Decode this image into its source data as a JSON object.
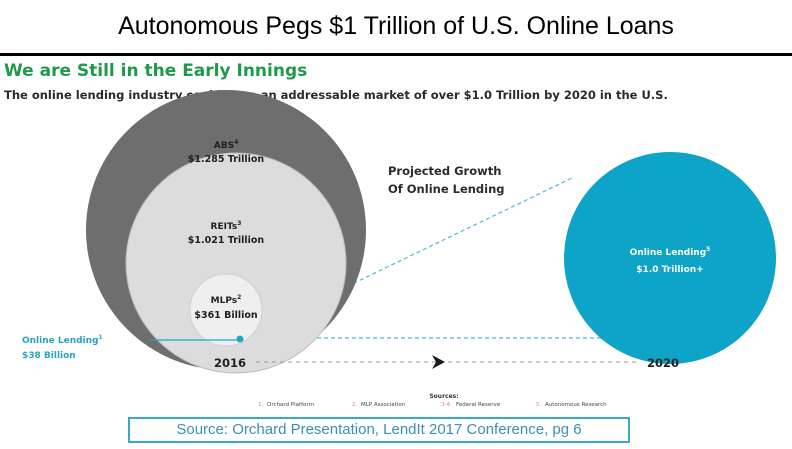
{
  "page_title": "Autonomous Pegs $1 Trillion of U.S. Online Loans",
  "slide": {
    "heading": "We are Still in the Early Innings",
    "subheading": "The online lending industry could have an addressable market of over $1.0 Trillion by 2020 in the U.S.",
    "circles": {
      "abs": {
        "label": "ABS",
        "sup": "4",
        "value": "$1.285 Trillion",
        "color": "#6e6e6e"
      },
      "reits": {
        "label": "REITs",
        "sup": "3",
        "value": "$1.021 Trillion",
        "color": "#dcdcdc"
      },
      "mlps": {
        "label": "MLPs",
        "sup": "2",
        "value": "$361 Billion",
        "color": "#efefef"
      },
      "online_2016": {
        "label": "Online Lending",
        "sup": "1",
        "value": "$38 Billion",
        "color": "#29a3c4"
      },
      "online_2020": {
        "label": "Online Lending",
        "sup": "5",
        "value": "$1.0 Trillion+",
        "color": "#0ea4c8"
      }
    },
    "projected_line1": "Projected Growth",
    "projected_line2": "Of Online Lending",
    "year_start": "2016",
    "year_end": "2020",
    "sources_title": "Sources:",
    "sources": [
      {
        "num": "1.",
        "text": "Orchard Platform"
      },
      {
        "num": "2.",
        "text": "MLP Association"
      },
      {
        "num": "3-4.",
        "text": "Federal Reserve"
      },
      {
        "num": "5.",
        "text": "Autonomous Research"
      }
    ]
  },
  "source_note": "Source: Orchard Presentation, LendIt 2017 Conference, pg 6"
}
